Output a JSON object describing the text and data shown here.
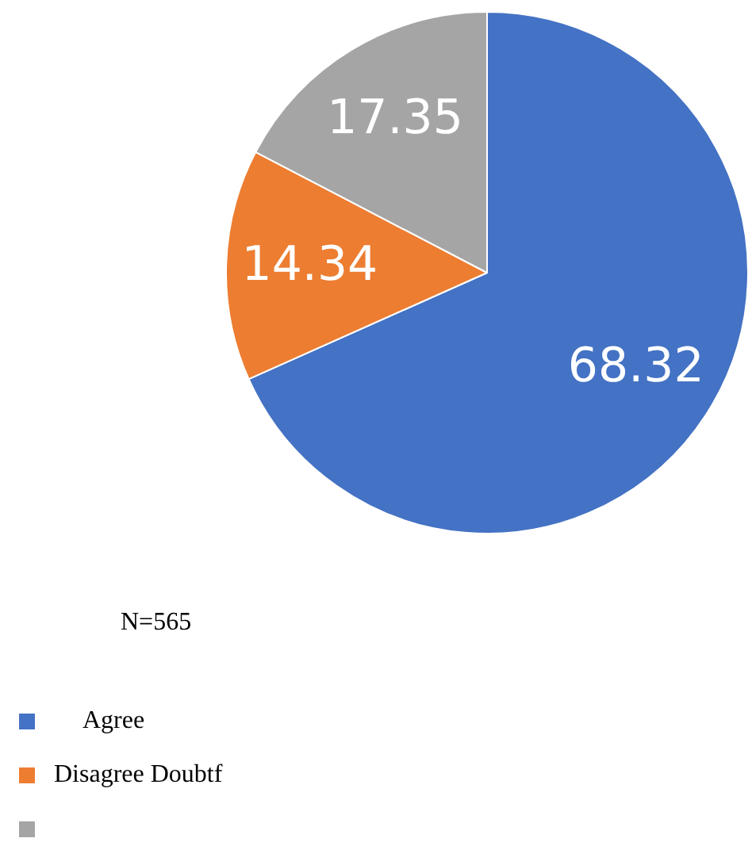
{
  "chart_data": {
    "type": "pie",
    "categories": [
      "Agree",
      "Disagree Doubtf",
      null
    ],
    "values": [
      68.32,
      14.34,
      17.35
    ],
    "colors": [
      "#4472c4",
      "#ed7d31",
      "#a5a5a5"
    ],
    "data_labels": true,
    "legend": "bottom left",
    "annotations": [
      "N=565"
    ]
  }
}
